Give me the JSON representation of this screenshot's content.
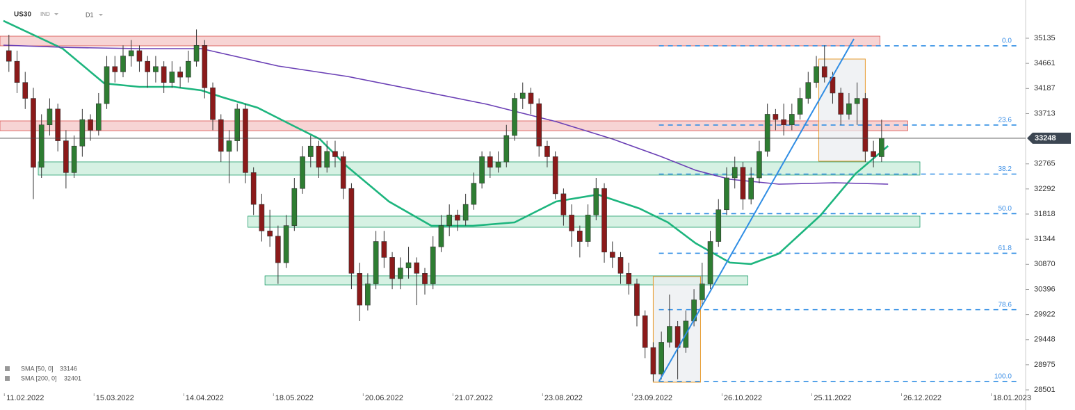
{
  "chart_data": {
    "type": "candlestick",
    "symbol": "US30",
    "instrument_type": "IND",
    "timeframe": "D1",
    "up_color": "#2e7d32",
    "down_color": "#8b1a1a",
    "ylim": [
      28449,
      35856
    ],
    "xlim": [
      -1.09,
      124.66
    ],
    "yticks": [
      35135,
      34661,
      34187,
      33713,
      32765,
      32292,
      31818,
      31344,
      30870,
      30396,
      29922,
      29448,
      28975,
      28501
    ],
    "xticks": [
      {
        "value": 2,
        "label": "11.02.2022"
      },
      {
        "value": 13,
        "label": "15.03.2022"
      },
      {
        "value": 24,
        "label": "14.04.2022"
      },
      {
        "value": 35,
        "label": "18.05.2022"
      },
      {
        "value": 46,
        "label": "20.06.2022"
      },
      {
        "value": 57,
        "label": "21.07.2022"
      },
      {
        "value": 68,
        "label": "23.08.2022"
      },
      {
        "value": 79,
        "label": "23.09.2022"
      },
      {
        "value": 90,
        "label": "26.10.2022"
      },
      {
        "value": 101,
        "label": "25.11.2022"
      },
      {
        "value": 112,
        "label": "26.12.2022"
      },
      {
        "value": 123,
        "label": "18.01.2023"
      }
    ],
    "last_price": 33248,
    "ohlc": [
      [
        34900,
        35200,
        34500,
        34700
      ],
      [
        34700,
        34900,
        34100,
        34300
      ],
      [
        34300,
        34500,
        33800,
        34000
      ],
      [
        34000,
        34200,
        32100,
        32700
      ],
      [
        32700,
        33700,
        32500,
        33500
      ],
      [
        33500,
        34000,
        33300,
        33800
      ],
      [
        33800,
        33900,
        33000,
        33200
      ],
      [
        33200,
        33400,
        32300,
        32600
      ],
      [
        32600,
        33300,
        32500,
        33100
      ],
      [
        33100,
        33800,
        32900,
        33600
      ],
      [
        33600,
        33700,
        33200,
        33400
      ],
      [
        33400,
        34100,
        33300,
        33900
      ],
      [
        33900,
        34800,
        33800,
        34600
      ],
      [
        34600,
        34800,
        34300,
        34500
      ],
      [
        34500,
        35000,
        34400,
        34800
      ],
      [
        34800,
        35100,
        34600,
        34900
      ],
      [
        34900,
        35000,
        34500,
        34700
      ],
      [
        34700,
        34800,
        34200,
        34500
      ],
      [
        34500,
        34800,
        34300,
        34600
      ],
      [
        34600,
        34700,
        34100,
        34300
      ],
      [
        34300,
        34700,
        34200,
        34500
      ],
      [
        34500,
        34600,
        34200,
        34400
      ],
      [
        34400,
        34900,
        34300,
        34700
      ],
      [
        34700,
        35300,
        34600,
        35000
      ],
      [
        35000,
        35100,
        34000,
        34200
      ],
      [
        34200,
        34300,
        33400,
        33600
      ],
      [
        33600,
        33700,
        32800,
        33000
      ],
      [
        33000,
        33400,
        32400,
        33200
      ],
      [
        33200,
        33900,
        33000,
        33800
      ],
      [
        33800,
        33900,
        32400,
        32600
      ],
      [
        32600,
        32700,
        31800,
        32000
      ],
      [
        32000,
        32200,
        31300,
        31500
      ],
      [
        31500,
        31900,
        31200,
        31400
      ],
      [
        31400,
        31600,
        30500,
        30900
      ],
      [
        30900,
        31800,
        30800,
        31600
      ],
      [
        31600,
        32500,
        31500,
        32300
      ],
      [
        32300,
        33100,
        32200,
        32900
      ],
      [
        32900,
        33300,
        32700,
        33100
      ],
      [
        33100,
        33200,
        32500,
        32700
      ],
      [
        32700,
        33200,
        32600,
        33000
      ],
      [
        33000,
        33200,
        32700,
        32900
      ],
      [
        32900,
        33000,
        32100,
        32300
      ],
      [
        32300,
        32400,
        30400,
        30700
      ],
      [
        30700,
        30900,
        29800,
        30100
      ],
      [
        30100,
        30700,
        30000,
        30500
      ],
      [
        30500,
        31500,
        30400,
        31300
      ],
      [
        31300,
        31500,
        30800,
        31000
      ],
      [
        31000,
        31100,
        30400,
        30600
      ],
      [
        30600,
        31000,
        30400,
        30800
      ],
      [
        30800,
        31200,
        30600,
        30900
      ],
      [
        30900,
        31000,
        30100,
        30700
      ],
      [
        30700,
        30800,
        30300,
        30500
      ],
      [
        30500,
        31400,
        30400,
        31200
      ],
      [
        31200,
        31800,
        31100,
        31600
      ],
      [
        31600,
        32000,
        31400,
        31800
      ],
      [
        31800,
        31900,
        31500,
        31700
      ],
      [
        31700,
        32200,
        31600,
        32000
      ],
      [
        32000,
        32600,
        31900,
        32400
      ],
      [
        32400,
        33000,
        32300,
        32900
      ],
      [
        32900,
        33000,
        32500,
        32700
      ],
      [
        32700,
        33000,
        32600,
        32800
      ],
      [
        32800,
        33500,
        32700,
        33300
      ],
      [
        33300,
        34100,
        33200,
        34000
      ],
      [
        34000,
        34300,
        33800,
        34100
      ],
      [
        34100,
        34200,
        33700,
        33900
      ],
      [
        33900,
        34000,
        32900,
        33100
      ],
      [
        33100,
        33200,
        32700,
        32900
      ],
      [
        32900,
        33000,
        32100,
        32200
      ],
      [
        32200,
        32300,
        31600,
        31800
      ],
      [
        31800,
        32000,
        31200,
        31500
      ],
      [
        31500,
        31600,
        31000,
        31300
      ],
      [
        31300,
        32000,
        31200,
        31800
      ],
      [
        31800,
        32500,
        31700,
        32300
      ],
      [
        32300,
        32400,
        30900,
        31100
      ],
      [
        31100,
        31300,
        30800,
        31000
      ],
      [
        31000,
        31100,
        30500,
        30700
      ],
      [
        30700,
        30900,
        30300,
        30500
      ],
      [
        30500,
        30600,
        29700,
        29900
      ],
      [
        29900,
        30000,
        29100,
        29300
      ],
      [
        29300,
        29400,
        28660,
        28800
      ],
      [
        28800,
        29600,
        28700,
        29400
      ],
      [
        29400,
        30300,
        29300,
        29700
      ],
      [
        29700,
        29800,
        28700,
        29300
      ],
      [
        29300,
        30000,
        29200,
        29800
      ],
      [
        29800,
        30400,
        29700,
        30200
      ],
      [
        30200,
        30900,
        30100,
        30500
      ],
      [
        30500,
        31500,
        30400,
        31300
      ],
      [
        31300,
        32100,
        31200,
        31900
      ],
      [
        31900,
        32700,
        31800,
        32500
      ],
      [
        32500,
        32900,
        32300,
        32700
      ],
      [
        32700,
        32800,
        31900,
        32100
      ],
      [
        32100,
        32700,
        32000,
        32500
      ],
      [
        32500,
        33200,
        32400,
        33000
      ],
      [
        33000,
        33900,
        32900,
        33700
      ],
      [
        33700,
        33800,
        33400,
        33600
      ],
      [
        33600,
        33900,
        33300,
        33500
      ],
      [
        33500,
        33900,
        33400,
        33700
      ],
      [
        33700,
        34200,
        33600,
        34000
      ],
      [
        34000,
        34500,
        33900,
        34300
      ],
      [
        34300,
        34800,
        34200,
        34600
      ],
      [
        34600,
        35000,
        34300,
        34400
      ],
      [
        34400,
        34500,
        33900,
        34100
      ],
      [
        34100,
        34200,
        33500,
        33700
      ],
      [
        33700,
        34100,
        33600,
        33900
      ],
      [
        33900,
        34300,
        33500,
        34000
      ],
      [
        34000,
        34100,
        32800,
        33000
      ],
      [
        33000,
        33200,
        32700,
        32900
      ],
      [
        32900,
        33600,
        32800,
        33248
      ]
    ],
    "sma": [
      {
        "name": "SMA [50, 0]",
        "last": 33146,
        "color": "#1db57e",
        "x": [
          -0.67,
          6.6,
          11.7,
          16,
          20.2,
          23.6,
          26.2,
          30.5,
          34.7,
          38.1,
          41.5,
          46.6,
          51.8,
          56.9,
          62,
          67.1,
          72.2,
          77.3,
          80.8,
          84.2,
          88.4,
          91,
          94.4,
          99.5,
          103.8,
          107.8
        ],
        "values": [
          35464,
          34938,
          34283,
          34217,
          34217,
          34152,
          34020,
          33824,
          33496,
          33234,
          32710,
          32054,
          31596,
          31596,
          31661,
          32054,
          32185,
          31923,
          31661,
          31268,
          30902,
          30875,
          31071,
          31792,
          32579,
          33103
        ]
      },
      {
        "name": "SMA [200, 0]",
        "last": 32401,
        "color": "#6a3fb5",
        "x": [
          -0.67,
          7.4,
          16,
          23.6,
          33,
          41.5,
          50.1,
          58.6,
          67.1,
          74,
          79.9,
          84.2,
          88.4,
          94.4,
          101.2,
          107.8
        ],
        "values": [
          35004,
          34960,
          34938,
          34938,
          34611,
          34414,
          34152,
          33890,
          33562,
          33234,
          32906,
          32644,
          32474,
          32382,
          32408,
          32382
        ]
      }
    ],
    "zones": [
      {
        "x": [
          -1.09,
          106.8
        ],
        "from": 34991,
        "to": 35174,
        "color": "#f4c6c6"
      },
      {
        "x": [
          -1.09,
          110.2
        ],
        "from": 33391,
        "to": 33575,
        "color": "#f4c6c6"
      },
      {
        "x": [
          3.6,
          111.7
        ],
        "from": 32553,
        "to": 32802,
        "color": "#c8ecd9"
      },
      {
        "x": [
          29.3,
          111.7
        ],
        "from": 31569,
        "to": 31779,
        "color": "#c8ecd9"
      },
      {
        "x": [
          31.4,
          90.6
        ],
        "from": 30481,
        "to": 30652,
        "color": "#c8ecd9"
      }
    ],
    "fib_x": [
      79.7,
      123.8
    ],
    "fib_levels": [
      {
        "label": "0.0",
        "price": 34991
      },
      {
        "label": "23.6",
        "price": 33497
      },
      {
        "label": "38.2",
        "price": 32572
      },
      {
        "label": "50.0",
        "price": 31825
      },
      {
        "label": "61.8",
        "price": 31078
      },
      {
        "label": "78.6",
        "price": 30014
      },
      {
        "label": "100.0",
        "price": 28659
      }
    ],
    "boxes": [
      {
        "x": [
          79.0,
          84.8
        ],
        "from": 28646,
        "to": 30638
      },
      {
        "x": [
          99.3,
          105.0
        ],
        "from": 32815,
        "to": 34742
      }
    ],
    "trendline": {
      "x": [
        79.7,
        103.6
      ],
      "values": [
        28659,
        35122
      ]
    }
  }
}
